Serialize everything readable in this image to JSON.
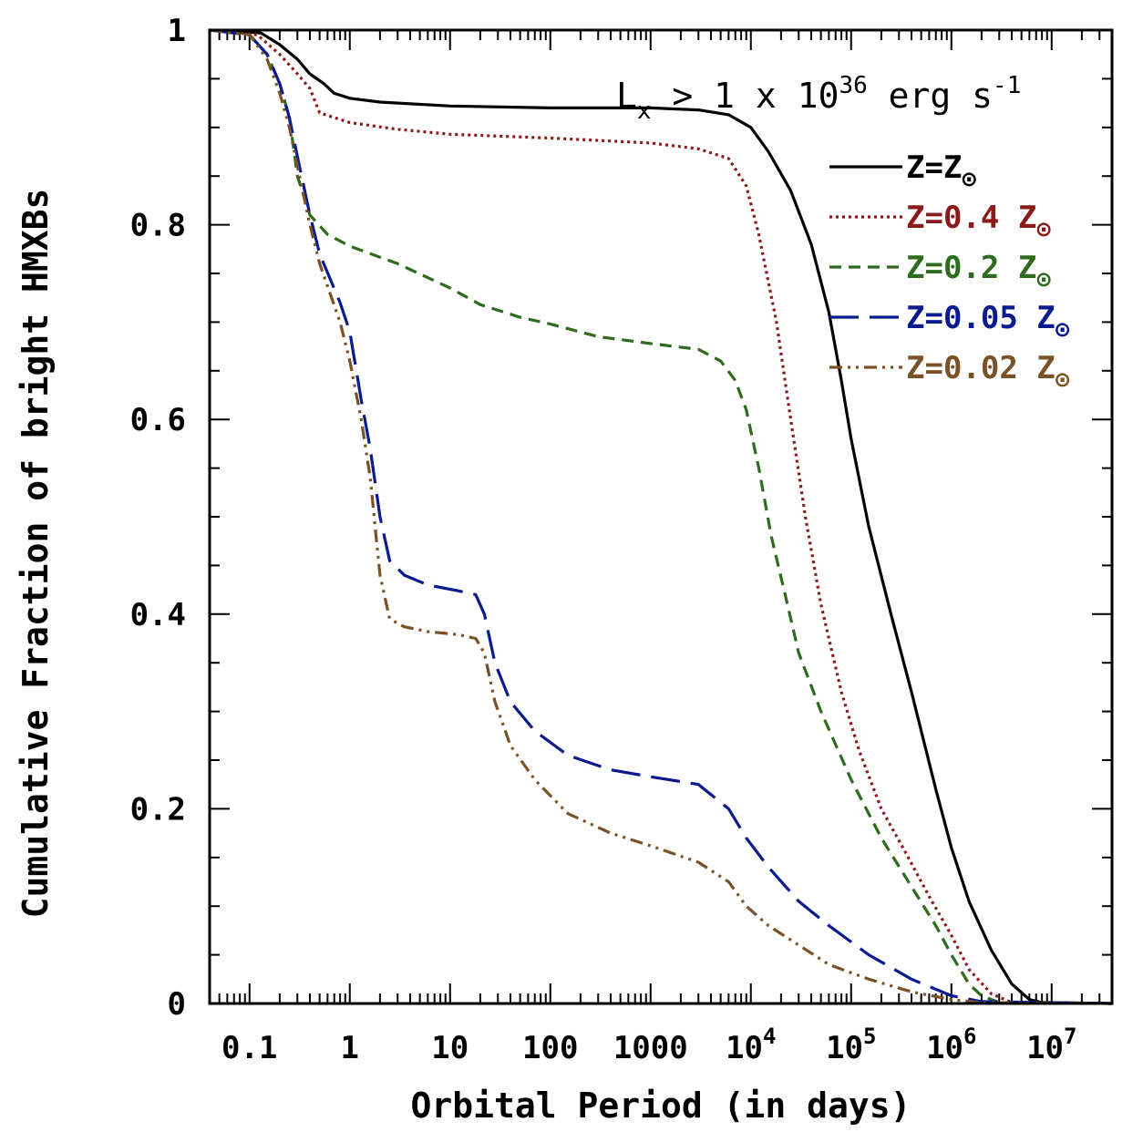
{
  "chart_data": {
    "type": "line",
    "xscale": "log",
    "xlim": [
      0.04,
      40000000
    ],
    "ylim": [
      0,
      1
    ],
    "xlabel": "Orbital Period (in days)",
    "ylabel": "Cumulative Fraction of bright HMXBs",
    "annotation": {
      "base": "L",
      "sub": "x",
      "mid": " > 1 x 10",
      "sup": "36",
      "tail": " erg s",
      "tailsup": "-1"
    },
    "xticks": [
      {
        "value": 0.1,
        "label": "0.1",
        "base": "",
        "exp": ""
      },
      {
        "value": 1,
        "label": "1",
        "base": "",
        "exp": ""
      },
      {
        "value": 10,
        "label": "10",
        "base": "",
        "exp": ""
      },
      {
        "value": 100,
        "label": "100",
        "base": "",
        "exp": ""
      },
      {
        "value": 1000,
        "label": "1000",
        "base": "",
        "exp": ""
      },
      {
        "value": 10000,
        "label": "",
        "base": "10",
        "exp": "4"
      },
      {
        "value": 100000,
        "label": "",
        "base": "10",
        "exp": "5"
      },
      {
        "value": 1000000,
        "label": "",
        "base": "10",
        "exp": "6"
      },
      {
        "value": 10000000,
        "label": "",
        "base": "10",
        "exp": "7"
      }
    ],
    "yticks": [
      {
        "value": 0,
        "label": "0"
      },
      {
        "value": 0.2,
        "label": "0.2"
      },
      {
        "value": 0.4,
        "label": "0.4"
      },
      {
        "value": 0.6,
        "label": "0.6"
      },
      {
        "value": 0.8,
        "label": "0.8"
      },
      {
        "value": 1,
        "label": "1"
      }
    ],
    "legend_position": "top-right",
    "series": [
      {
        "name": "Z=Z",
        "sun": "⊙",
        "color": "#000000",
        "dash": "solid",
        "points": [
          [
            0.04,
            1
          ],
          [
            0.13,
            0.997
          ],
          [
            0.2,
            0.985
          ],
          [
            0.3,
            0.97
          ],
          [
            0.4,
            0.955
          ],
          [
            0.55,
            0.945
          ],
          [
            0.7,
            0.935
          ],
          [
            1,
            0.93
          ],
          [
            2,
            0.926
          ],
          [
            10,
            0.922
          ],
          [
            100,
            0.92
          ],
          [
            1000,
            0.92
          ],
          [
            3000,
            0.918
          ],
          [
            6000,
            0.913
          ],
          [
            10000,
            0.9
          ],
          [
            15000,
            0.875
          ],
          [
            25000,
            0.835
          ],
          [
            40000,
            0.78
          ],
          [
            60000,
            0.71
          ],
          [
            80000,
            0.64
          ],
          [
            100000,
            0.58
          ],
          [
            150000,
            0.49
          ],
          [
            250000,
            0.4
          ],
          [
            400000,
            0.32
          ],
          [
            700000,
            0.22
          ],
          [
            1000000,
            0.16
          ],
          [
            1500000,
            0.105
          ],
          [
            2500000,
            0.055
          ],
          [
            4000000,
            0.02
          ],
          [
            6000000,
            0.004
          ],
          [
            8000000,
            0.001
          ],
          [
            40000000,
            0
          ]
        ]
      },
      {
        "name": "Z=0.4 Z",
        "sun": "⊙",
        "color": "#8b1a1a",
        "dash": "dotted",
        "points": [
          [
            0.04,
            1
          ],
          [
            0.12,
            0.995
          ],
          [
            0.2,
            0.975
          ],
          [
            0.3,
            0.955
          ],
          [
            0.4,
            0.94
          ],
          [
            0.5,
            0.915
          ],
          [
            1,
            0.905
          ],
          [
            3,
            0.898
          ],
          [
            10,
            0.893
          ],
          [
            100,
            0.889
          ],
          [
            1000,
            0.884
          ],
          [
            3000,
            0.878
          ],
          [
            6000,
            0.868
          ],
          [
            9000,
            0.84
          ],
          [
            12000,
            0.79
          ],
          [
            18000,
            0.7
          ],
          [
            25000,
            0.6
          ],
          [
            35000,
            0.5
          ],
          [
            50000,
            0.41
          ],
          [
            80000,
            0.32
          ],
          [
            120000,
            0.26
          ],
          [
            200000,
            0.2
          ],
          [
            350000,
            0.155
          ],
          [
            600000,
            0.11
          ],
          [
            1000000,
            0.07
          ],
          [
            1500000,
            0.035
          ],
          [
            2500000,
            0.01
          ],
          [
            4000000,
            0.001
          ],
          [
            40000000,
            0
          ]
        ]
      },
      {
        "name": "Z=0.2 Z",
        "sun": "⊙",
        "color": "#2e6b1e",
        "dash": "dashed",
        "points": [
          [
            0.04,
            1
          ],
          [
            0.1,
            0.995
          ],
          [
            0.15,
            0.975
          ],
          [
            0.2,
            0.945
          ],
          [
            0.25,
            0.91
          ],
          [
            0.3,
            0.85
          ],
          [
            0.4,
            0.81
          ],
          [
            0.6,
            0.79
          ],
          [
            1,
            0.778
          ],
          [
            3,
            0.76
          ],
          [
            10,
            0.735
          ],
          [
            20,
            0.718
          ],
          [
            50,
            0.705
          ],
          [
            100,
            0.698
          ],
          [
            300,
            0.685
          ],
          [
            1000,
            0.678
          ],
          [
            3000,
            0.672
          ],
          [
            5000,
            0.66
          ],
          [
            7000,
            0.64
          ],
          [
            9000,
            0.61
          ],
          [
            12000,
            0.55
          ],
          [
            16000,
            0.48
          ],
          [
            22000,
            0.42
          ],
          [
            30000,
            0.36
          ],
          [
            50000,
            0.3
          ],
          [
            100000,
            0.23
          ],
          [
            200000,
            0.17
          ],
          [
            400000,
            0.12
          ],
          [
            700000,
            0.08
          ],
          [
            1000000,
            0.05
          ],
          [
            1500000,
            0.02
          ],
          [
            2000000,
            0.008
          ],
          [
            3000000,
            0.001
          ],
          [
            40000000,
            0
          ]
        ]
      },
      {
        "name": "Z=0.05 Z",
        "sun": "⊙",
        "color": "#0a1a8f",
        "dash": "longdash",
        "points": [
          [
            0.04,
            1
          ],
          [
            0.1,
            0.995
          ],
          [
            0.15,
            0.975
          ],
          [
            0.2,
            0.945
          ],
          [
            0.25,
            0.91
          ],
          [
            0.3,
            0.87
          ],
          [
            0.4,
            0.81
          ],
          [
            0.5,
            0.77
          ],
          [
            0.8,
            0.72
          ],
          [
            1,
            0.69
          ],
          [
            1.3,
            0.62
          ],
          [
            1.6,
            0.57
          ],
          [
            2,
            0.5
          ],
          [
            2.5,
            0.455
          ],
          [
            3.5,
            0.44
          ],
          [
            6,
            0.43
          ],
          [
            12,
            0.424
          ],
          [
            18,
            0.42
          ],
          [
            22,
            0.4
          ],
          [
            28,
            0.35
          ],
          [
            40,
            0.31
          ],
          [
            70,
            0.28
          ],
          [
            150,
            0.255
          ],
          [
            400,
            0.24
          ],
          [
            1000,
            0.233
          ],
          [
            3000,
            0.225
          ],
          [
            6000,
            0.2
          ],
          [
            9000,
            0.17
          ],
          [
            15000,
            0.14
          ],
          [
            30000,
            0.105
          ],
          [
            60000,
            0.08
          ],
          [
            150000,
            0.05
          ],
          [
            400000,
            0.025
          ],
          [
            1000000,
            0.008
          ],
          [
            2000000,
            0.002
          ],
          [
            40000000,
            0
          ]
        ]
      },
      {
        "name": "Z=0.02 Z",
        "sun": "⊙",
        "color": "#7a5228",
        "dash": "dashdotdot",
        "points": [
          [
            0.04,
            1
          ],
          [
            0.1,
            0.995
          ],
          [
            0.15,
            0.97
          ],
          [
            0.2,
            0.935
          ],
          [
            0.25,
            0.9
          ],
          [
            0.3,
            0.86
          ],
          [
            0.4,
            0.8
          ],
          [
            0.5,
            0.76
          ],
          [
            0.8,
            0.7
          ],
          [
            1,
            0.66
          ],
          [
            1.3,
            0.6
          ],
          [
            1.6,
            0.54
          ],
          [
            2,
            0.44
          ],
          [
            2.5,
            0.395
          ],
          [
            3.5,
            0.387
          ],
          [
            6,
            0.382
          ],
          [
            12,
            0.379
          ],
          [
            18,
            0.375
          ],
          [
            22,
            0.36
          ],
          [
            28,
            0.31
          ],
          [
            40,
            0.265
          ],
          [
            70,
            0.23
          ],
          [
            150,
            0.195
          ],
          [
            400,
            0.175
          ],
          [
            1000,
            0.162
          ],
          [
            3000,
            0.145
          ],
          [
            6000,
            0.125
          ],
          [
            9000,
            0.1
          ],
          [
            15000,
            0.08
          ],
          [
            30000,
            0.06
          ],
          [
            60000,
            0.04
          ],
          [
            150000,
            0.025
          ],
          [
            400000,
            0.012
          ],
          [
            1000000,
            0.004
          ],
          [
            2000000,
            0.001
          ],
          [
            40000000,
            0
          ]
        ]
      }
    ]
  }
}
